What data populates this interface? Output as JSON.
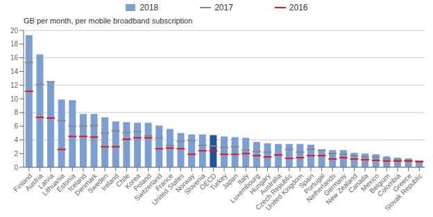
{
  "chart_data": {
    "type": "bar",
    "y_label": "GB per month, per mobile broadband subscription",
    "categories": [
      "Finland",
      "Austria",
      "Latvia",
      "Lithuania",
      "Estonia",
      "Iceland",
      "Denmark",
      "Sweden",
      "Ireland",
      "Chile",
      "Korea",
      "Poland",
      "Switzerland",
      "France",
      "United States",
      "Norway",
      "Slovenia",
      "OECD",
      "Turkey",
      "Japan",
      "Italy",
      "Luxembourg",
      "Hungary",
      "Australia",
      "Czech Republic",
      "United Kingdom",
      "Spain",
      "Portugal",
      "Netherlands",
      "Germany",
      "New Zealand",
      "Canada",
      "Mexico",
      "Belgium",
      "Colombia",
      "Greece",
      "Slovak Republic"
    ],
    "series": [
      {
        "name": "2018",
        "type": "bar",
        "color": "#7B9FD4",
        "colors": [
          "#7B9FD4",
          "#7B9FD4",
          "#7B9FD4",
          "#7B9FD4",
          "#7B9FD4",
          "#7B9FD4",
          "#7B9FD4",
          "#7B9FD4",
          "#7B9FD4",
          "#7B9FD4",
          "#7B9FD4",
          "#7B9FD4",
          "#7B9FD4",
          "#7B9FD4",
          "#7B9FD4",
          "#7B9FD4",
          "#7B9FD4",
          "#2255A0",
          "#7B9FD4",
          "#7B9FD4",
          "#7B9FD4",
          "#7B9FD4",
          "#7B9FD4",
          "#7B9FD4",
          "#7B9FD4",
          "#7B9FD4",
          "#7B9FD4",
          "#7B9FD4",
          "#7B9FD4",
          "#7B9FD4",
          "#7B9FD4",
          "#7B9FD4",
          "#7B9FD4",
          "#7B9FD4",
          "#7B9FD4",
          "#7B9FD4",
          "#7B9FD4"
        ],
        "values": [
          19.3,
          16.5,
          12.5,
          9.9,
          9.8,
          7.8,
          7.8,
          7.3,
          6.7,
          6.6,
          6.5,
          6.5,
          6.1,
          5.6,
          5.0,
          4.8,
          4.8,
          4.7,
          4.5,
          4.4,
          4.3,
          3.7,
          3.5,
          3.4,
          3.4,
          3.4,
          3.3,
          2.6,
          2.5,
          2.5,
          2.1,
          2.0,
          1.9,
          1.6,
          1.4,
          1.3,
          0.9
        ]
      },
      {
        "name": "2017",
        "type": "scatter",
        "marker": "hline",
        "color": "#888888",
        "values": [
          15.3,
          12.1,
          12.5,
          6.8,
          6.0,
          6.0,
          6.1,
          5.0,
          5.3,
          5.1,
          5.2,
          4.6,
          4.3,
          3.2,
          3.8,
          3.9,
          3.2,
          3.1,
          2.9,
          3.0,
          2.5,
          2.3,
          2.2,
          1.8,
          2.6,
          2.2,
          2.6,
          2.5,
          2.0,
          1.9,
          1.7,
          1.5,
          1.5,
          1.2,
          1.1,
          1.0,
          0.9
        ]
      },
      {
        "name": "2016",
        "type": "scatter",
        "marker": "hline",
        "color": "#EE1111",
        "values": [
          11.1,
          7.3,
          7.2,
          2.6,
          4.5,
          4.5,
          4.4,
          3.0,
          3.0,
          4.1,
          4.3,
          4.3,
          2.7,
          2.8,
          2.7,
          1.9,
          2.4,
          2.4,
          1.9,
          1.9,
          2.0,
          1.7,
          1.5,
          1.8,
          1.3,
          1.4,
          1.7,
          1.7,
          1.2,
          1.4,
          1.2,
          1.1,
          1.0,
          0.9,
          0.9,
          0.9,
          0.8
        ]
      }
    ],
    "ylim": [
      0,
      20
    ],
    "yticks": [
      0,
      2,
      4,
      6,
      8,
      10,
      12,
      14,
      16,
      18,
      20
    ],
    "grid": true,
    "legend": "top"
  }
}
